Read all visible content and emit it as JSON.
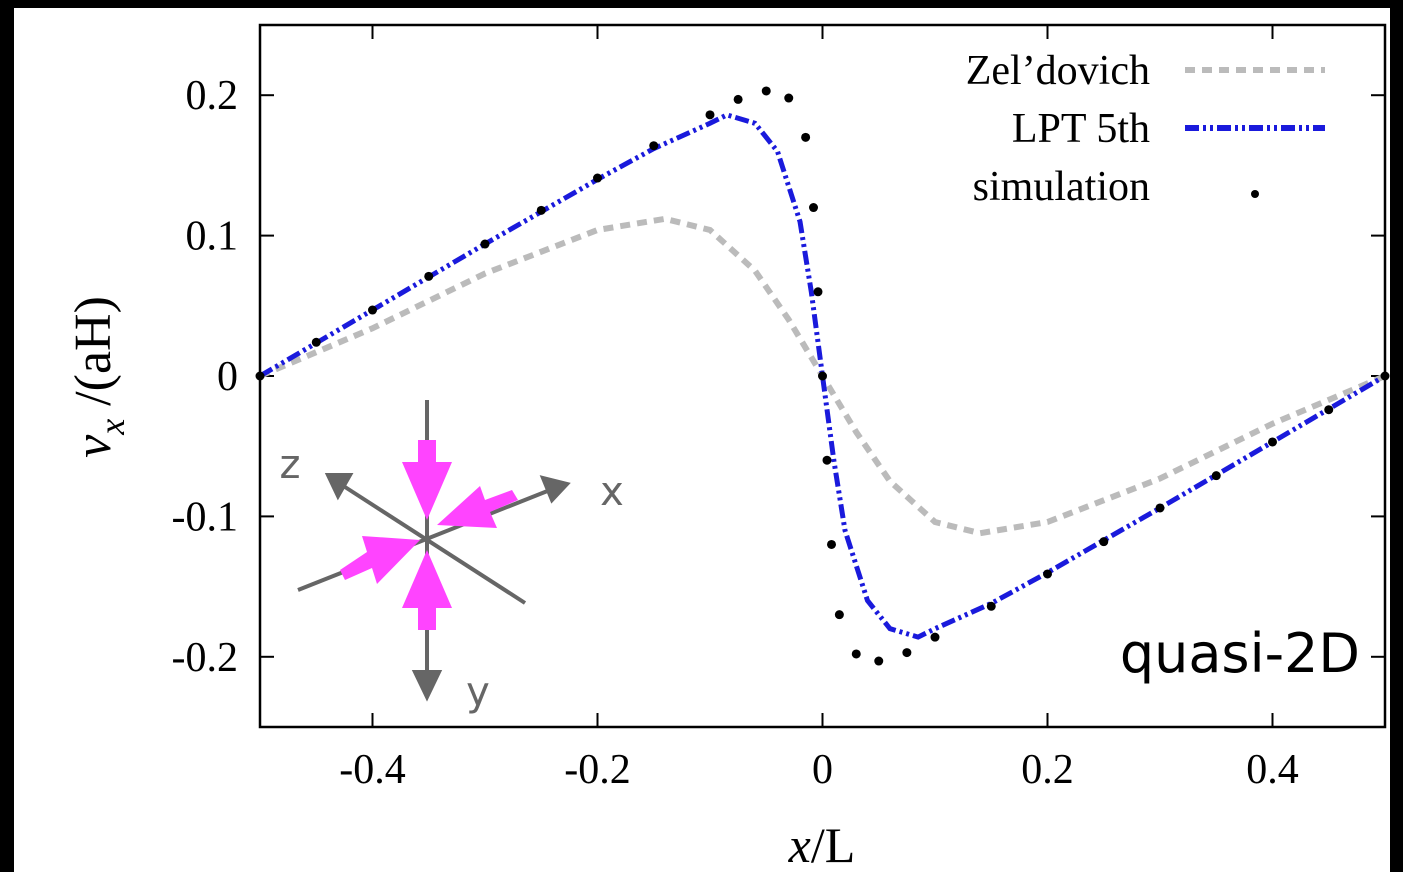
{
  "chart_data": {
    "type": "line",
    "xlabel": {
      "symbol": "x",
      "rest": "/L"
    },
    "ylabel": {
      "symbol": "v",
      "subscript": "x",
      "rest": " /(aH)"
    },
    "annotation": "quasi-2D",
    "inset_axes": [
      "x",
      "y",
      "z"
    ],
    "xlim": [
      -0.5,
      0.5
    ],
    "ylim": [
      -0.25,
      0.25
    ],
    "xticks": [
      -0.4,
      -0.2,
      0,
      0.2,
      0.4
    ],
    "yticks": [
      -0.2,
      -0.1,
      0,
      0.1,
      0.2
    ],
    "legend": "top-right",
    "series": [
      {
        "name": "Zel’dovich",
        "color": "#bbbbbb",
        "style": "dashed",
        "x": [
          -0.5,
          -0.4,
          -0.3,
          -0.2,
          -0.14,
          -0.1,
          -0.06,
          -0.03,
          0,
          0.03,
          0.06,
          0.1,
          0.14,
          0.2,
          0.3,
          0.4,
          0.5
        ],
        "values": [
          0,
          0.034,
          0.073,
          0.104,
          0.112,
          0.104,
          0.075,
          0.04,
          0,
          -0.04,
          -0.075,
          -0.104,
          -0.112,
          -0.104,
          -0.073,
          -0.034,
          0
        ]
      },
      {
        "name": "LPT 5th",
        "color": "#1a1adc",
        "style": "dash-dot",
        "x": [
          -0.5,
          -0.4,
          -0.3,
          -0.2,
          -0.15,
          -0.1,
          -0.085,
          -0.06,
          -0.04,
          -0.02,
          -0.01,
          0,
          0.01,
          0.02,
          0.04,
          0.06,
          0.085,
          0.1,
          0.15,
          0.2,
          0.3,
          0.4,
          0.5
        ],
        "values": [
          0,
          0.047,
          0.094,
          0.14,
          0.162,
          0.18,
          0.186,
          0.18,
          0.16,
          0.11,
          0.06,
          0,
          -0.06,
          -0.11,
          -0.16,
          -0.18,
          -0.186,
          -0.18,
          -0.162,
          -0.14,
          -0.094,
          -0.047,
          0
        ]
      },
      {
        "name": "simulation",
        "color": "#000000",
        "style": "points",
        "x": [
          -0.5,
          -0.45,
          -0.4,
          -0.35,
          -0.3,
          -0.25,
          -0.2,
          -0.15,
          -0.1,
          -0.075,
          -0.05,
          -0.03,
          -0.015,
          -0.008,
          -0.004,
          0,
          0.004,
          0.008,
          0.015,
          0.03,
          0.05,
          0.075,
          0.1,
          0.15,
          0.2,
          0.25,
          0.3,
          0.35,
          0.4,
          0.45,
          0.5
        ],
        "values": [
          0,
          0.024,
          0.047,
          0.071,
          0.094,
          0.118,
          0.141,
          0.164,
          0.186,
          0.197,
          0.203,
          0.198,
          0.17,
          0.12,
          0.06,
          0,
          -0.06,
          -0.12,
          -0.17,
          -0.198,
          -0.203,
          -0.197,
          -0.186,
          -0.164,
          -0.141,
          -0.118,
          -0.094,
          -0.071,
          -0.047,
          -0.024,
          0
        ]
      }
    ]
  }
}
